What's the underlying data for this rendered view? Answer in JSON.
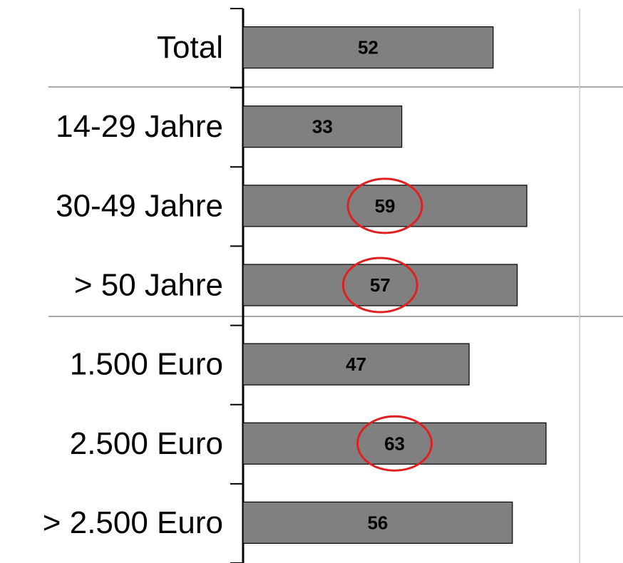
{
  "chart_data": {
    "type": "hbar",
    "categories": [
      "Total",
      "14-29 Jahre",
      "30-49 Jahre",
      "> 50 Jahre",
      "1.500 Euro",
      "2.500 Euro",
      "> 2.500 Euro"
    ],
    "values": [
      52,
      33,
      59,
      57,
      47,
      63,
      56
    ],
    "color": "#808080",
    "highlighted": [
      false,
      false,
      true,
      true,
      false,
      true,
      false
    ],
    "highlight_color": "#e02020",
    "xlim": [
      0,
      79
    ],
    "xgrid": [
      70
    ]
  }
}
